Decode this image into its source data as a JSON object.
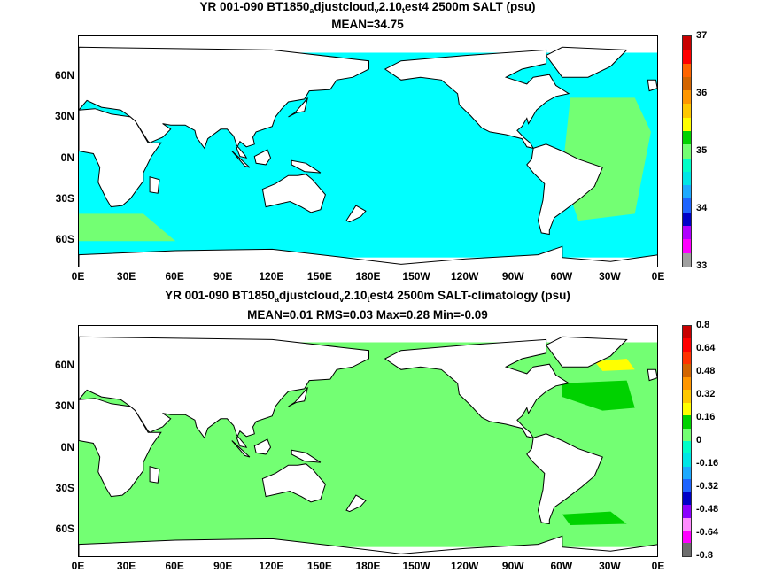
{
  "panels": [
    {
      "title_parts": [
        "YR 001-090 BT1850",
        "a",
        "djustcloud",
        "v",
        "2.10",
        "t",
        "est4 2500m SALT (psu)"
      ],
      "stats": "MEAN=34.75",
      "colorbar": {
        "labels": [
          "37",
          "36",
          "35",
          "34",
          "33"
        ],
        "colors": [
          "#a0a0a0",
          "#ff00ff",
          "#b000ff",
          "#0000c8",
          "#1e64ff",
          "#1eaaff",
          "#00e6e6",
          "#00ffc8",
          "#73ff73",
          "#00d200",
          "#ffff00",
          "#ffc800",
          "#ff9600",
          "#d26400",
          "#ff6400",
          "#ff0000",
          "#c80000"
        ],
        "ocean_color": "#00ffff"
      }
    },
    {
      "title_parts": [
        "YR 001-090 BT1850",
        "a",
        "djustcloud",
        "v",
        "2.10",
        "t",
        "est4 2500m SALT-climatology (psu)"
      ],
      "stats": "MEAN=0.01   RMS=0.03   Max=0.28   Min=-0.09",
      "colorbar": {
        "labels": [
          "0.8",
          "0.64",
          "0.48",
          "0.32",
          "0.16",
          "0",
          "-0.16",
          "-0.32",
          "-0.48",
          "-0.64",
          "-0.8"
        ],
        "colors": [
          "#6e6e6e",
          "#ff00ff",
          "#ff8cff",
          "#8c00ff",
          "#0000c8",
          "#1e64ff",
          "#1eaaff",
          "#00e6e6",
          "#00ffc8",
          "#73ff73",
          "#00d200",
          "#ffff00",
          "#ffc800",
          "#ff9600",
          "#d26400",
          "#ff3200",
          "#ff0000",
          "#c80000"
        ],
        "ocean_color": "#73ff73"
      }
    }
  ],
  "axes": {
    "lat_labels": [
      "60N",
      "30N",
      "0N",
      "30S",
      "60S"
    ],
    "lon_labels": [
      "0E",
      "30E",
      "60E",
      "90E",
      "120E",
      "150E",
      "180E",
      "150W",
      "120W",
      "90W",
      "60W",
      "30W",
      "0E"
    ]
  }
}
